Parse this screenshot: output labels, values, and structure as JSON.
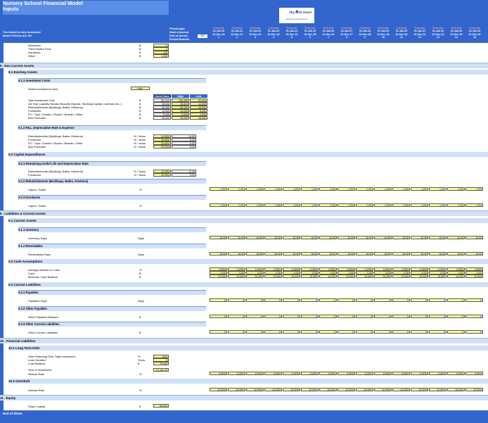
{
  "title": "Nursery School Financial Model",
  "subtitle": "Inputs",
  "model_note_1": "The Model is fully functional",
  "model_note_2": "Model Checks are OK",
  "logo_text": "Sky Bird Smart",
  "logo_sub": "Nursery Learning Zone",
  "period_labels": [
    "Period type",
    "Start of period",
    "End of period",
    "Period Number"
  ],
  "ok_badge": "OK",
  "periods": [
    {
      "type": "Forecast",
      "start": "01-Jan-20",
      "end": "31-Dec-20",
      "num": "1"
    },
    {
      "type": "Forecast",
      "start": "01-Jan-21",
      "end": "31-Dec-21",
      "num": "2"
    },
    {
      "type": "Forecast",
      "start": "01-Jan-22",
      "end": "31-Dec-22",
      "num": "3"
    },
    {
      "type": "Forecast",
      "start": "01-Jan-23",
      "end": "31-Dec-23",
      "num": "4"
    },
    {
      "type": "Forecast",
      "start": "01-Jan-24",
      "end": "31-Dec-24",
      "num": "5"
    },
    {
      "type": "Forecast",
      "start": "01-Jan-25",
      "end": "31-Dec-25",
      "num": "6"
    },
    {
      "type": "Forecast",
      "start": "01-Jan-26",
      "end": "31-Dec-26",
      "num": "7"
    },
    {
      "type": "Forecast",
      "start": "01-Jan-27",
      "end": "31-Dec-27",
      "num": "8"
    },
    {
      "type": "Forecast",
      "start": "01-Jan-28",
      "end": "31-Dec-28",
      "num": "9"
    },
    {
      "type": "Forecast",
      "start": "01-Jan-29",
      "end": "31-Dec-29",
      "num": "10"
    },
    {
      "type": "Forecast",
      "start": "01-Jan-30",
      "end": "31-Dec-30",
      "num": "11"
    },
    {
      "type": "Forecast",
      "start": "01-Jan-31",
      "end": "31-Dec-31",
      "num": "12"
    },
    {
      "type": "Forecast",
      "start": "01-Jan-32",
      "end": "31-Dec-32",
      "num": "13"
    },
    {
      "type": "Forecast",
      "start": "01-Jan-33",
      "end": "31-Dec-33",
      "num": "14"
    },
    {
      "type": "Forecast",
      "start": "01-Jan-34",
      "end": "31-Dec-34",
      "num": "15"
    }
  ],
  "top_rows": [
    {
      "label": "Workwear",
      "unit": "$",
      "value": "0"
    },
    {
      "label": "Third   Parties   Fees",
      "unit": "$",
      "value": "0"
    },
    {
      "label": "Insurance",
      "unit": "$",
      "value": "120"
    },
    {
      "label": "Other",
      "unit": "$",
      "value": "1,200"
    }
  ],
  "sections": {
    "s9": "9 .  Non Current Assets",
    "s91": "9.1   Existing Assets",
    "s911": "9.1.1   Investment Costs",
    "invest_case_label": "Select Investment Case",
    "invest_case_value": "High",
    "invest_headers": [
      "Used Case",
      "High",
      "Low"
    ],
    "invest_rows": [
      {
        "label": "Tota Investment Cost",
        "unit": "$",
        "vals": [
          "150,000",
          "150,000",
          "90,000"
        ]
      },
      {
        "label": "1st Year Liquidity Needs (Security Deposit, Working Capital, Licenses etc..)",
        "unit": "$",
        "vals": [
          "25,000",
          "25,000",
          "14,000"
        ]
      },
      {
        "label": "Refurbishments (Buildings, Baths, Kitchens)",
        "unit": "$",
        "vals": [
          "80,000",
          "80,000",
          "43,000"
        ]
      },
      {
        "label": "Furnitures",
        "unit": "$",
        "vals": [
          "10,000",
          "10,000",
          "5,000"
        ]
      },
      {
        "label": "PC / Toys / Garden / Books / Boards / Other",
        "unit": "$",
        "vals": [
          "5,000",
          "5,000",
          "2,000"
        ]
      },
      {
        "label": "Bus Purchase",
        "unit": "$",
        "vals": [
          "30,000",
          "30,000",
          "26,000"
        ]
      }
    ],
    "s912": "9.1.2   R&L, Depreciation Rate & Expense",
    "dep_rows": [
      {
        "label": "Refurbishments (Buildings, Baths, Kitchens)",
        "unit": "% / Years",
        "rate": "10.00%",
        "yrs": "10.00"
      },
      {
        "label": "Furnitures",
        "unit": "% / Years",
        "rate": "20.00%",
        "yrs": "5.00"
      },
      {
        "label": "PC / Toys / Garden / Books / Boards / Other",
        "unit": "% / Years",
        "rate": "20.00%",
        "yrs": "5.00"
      },
      {
        "label": "Bus Purchase",
        "unit": "% / Years",
        "rate": "20.00%",
        "yrs": "5.00"
      }
    ],
    "s92": "9.2   Capital Expenditures",
    "s921": "9.2.1   Remaining Useful Life and Depreciation Rate",
    "rul_rows": [
      {
        "label": "Refurbishments (Buildings, Baths, Kitchens)",
        "unit": "% / Years",
        "rate": "10.00%",
        "yrs": "10.00"
      },
      {
        "label": "Furnitures",
        "unit": "% / Years",
        "rate": "20.00%",
        "yrs": "5.00"
      }
    ],
    "s922": "9.2.2   Refurbishments (Buildings, Baths, Kitchens)",
    "capex_label": "Capex / Sales",
    "s923": "9.2.3   Furnitures",
    "s10": "9 .  Liabilities & Current Assets",
    "s101": "9.1   Current Assets",
    "s1011": "9.1.1   Inventory",
    "inv_label": "Inventory Days",
    "s1012": "9.1.2   Receivables",
    "rec_label": "Receivables Days",
    "s102": "9.2   Cash Assumptions",
    "cash_rows": [
      "Average Interest on Cash",
      "Cash",
      "Minimum Cash Balance"
    ],
    "s103": "9.3   Current Liabilities",
    "s1031": "9.3.1   Payables",
    "pay_label": "Payables Days",
    "s1032": "9.3.2   Other Payables",
    "opay_label": "Other Payables Balance",
    "s1033": "9.3.3   Other Current Liabilities",
    "ocl_label": "Other Current Liabilities",
    "s11": "10 .  Financial Liabilities",
    "s111": "10.1  Long Term Debt",
    "debt_rows": [
      {
        "label": "Debt Financing Over Total Investment",
        "unit": "%",
        "val": "50%"
      },
      {
        "label": "Loan Duration",
        "unit": "Years",
        "val": "5"
      },
      {
        "label": "Loan Balance",
        "unit": "$",
        "val": "75,000"
      },
      {
        "label": "Year of Investment",
        "unit": "",
        "val": "01-Jan-20"
      }
    ],
    "interest_label": "Interest Rate",
    "s112": "10.2  Overdraft",
    "od_label": "Interest Rate",
    "s12": "11 .  Equity",
    "share_label": "Share Capital",
    "share_unit": "$",
    "share_val": "65,000",
    "end": "End of Sheet"
  },
  "units": {
    "pct": "%",
    "days": "Days",
    "dollar": "$"
  },
  "series": {
    "capex": "1.0%",
    "furn": "1.0%",
    "inv": "10.00",
    "rec": "15.00",
    "avg_int": "0.00%",
    "cash": "0.00",
    "mincash": "10,000",
    "pay": "0",
    "opay": "0",
    "ocl": "0",
    "interest": "6.00%",
    "od": "10.00%"
  }
}
